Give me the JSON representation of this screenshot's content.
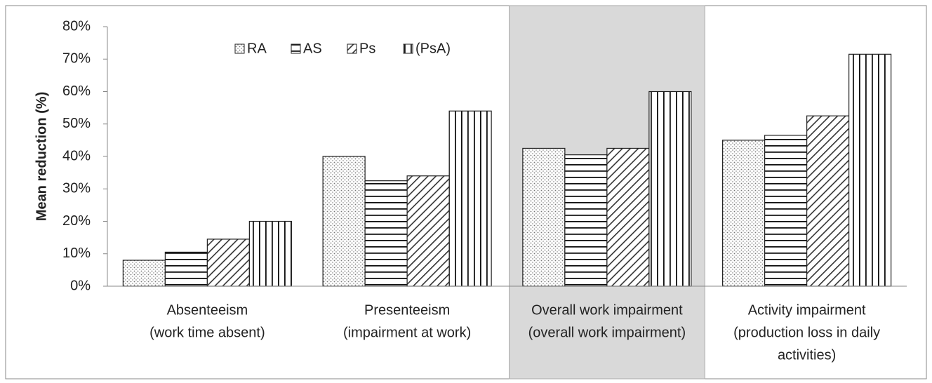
{
  "chart_data": {
    "type": "bar",
    "y_label": "Mean reduction (%)",
    "categories": [
      [
        "Absenteeism",
        "(work time absent)"
      ],
      [
        "Presenteeism",
        "(impairment at work)"
      ],
      [
        "Overall work impairment",
        "(overall work impairment)"
      ],
      [
        "Activity impairment",
        "(production loss in daily",
        "activities)"
      ]
    ],
    "highlight_category": 2,
    "series": [
      {
        "name": "RA",
        "pattern": "dots",
        "values": [
          8,
          40,
          42.5,
          45
        ]
      },
      {
        "name": "AS",
        "pattern": "hlines",
        "values": [
          10.5,
          32.5,
          40.5,
          46.5
        ]
      },
      {
        "name": "Ps",
        "pattern": "diag",
        "values": [
          14.5,
          34,
          42.5,
          52.5
        ]
      },
      {
        "name": "(PsA)",
        "pattern": "vlines",
        "values": [
          20,
          54,
          60,
          71.5
        ]
      }
    ],
    "ylim": [
      0,
      80
    ],
    "yticks": [
      {
        "value": 0,
        "label": "0%"
      },
      {
        "value": 10,
        "label": "10%"
      },
      {
        "value": 20,
        "label": "20%"
      },
      {
        "value": 30,
        "label": "30%"
      },
      {
        "value": 40,
        "label": "40%"
      },
      {
        "value": 50,
        "label": "50%"
      },
      {
        "value": 60,
        "label": "60%"
      },
      {
        "value": 70,
        "label": "70%"
      },
      {
        "value": 80,
        "label": "80%"
      }
    ],
    "legend": "top"
  }
}
